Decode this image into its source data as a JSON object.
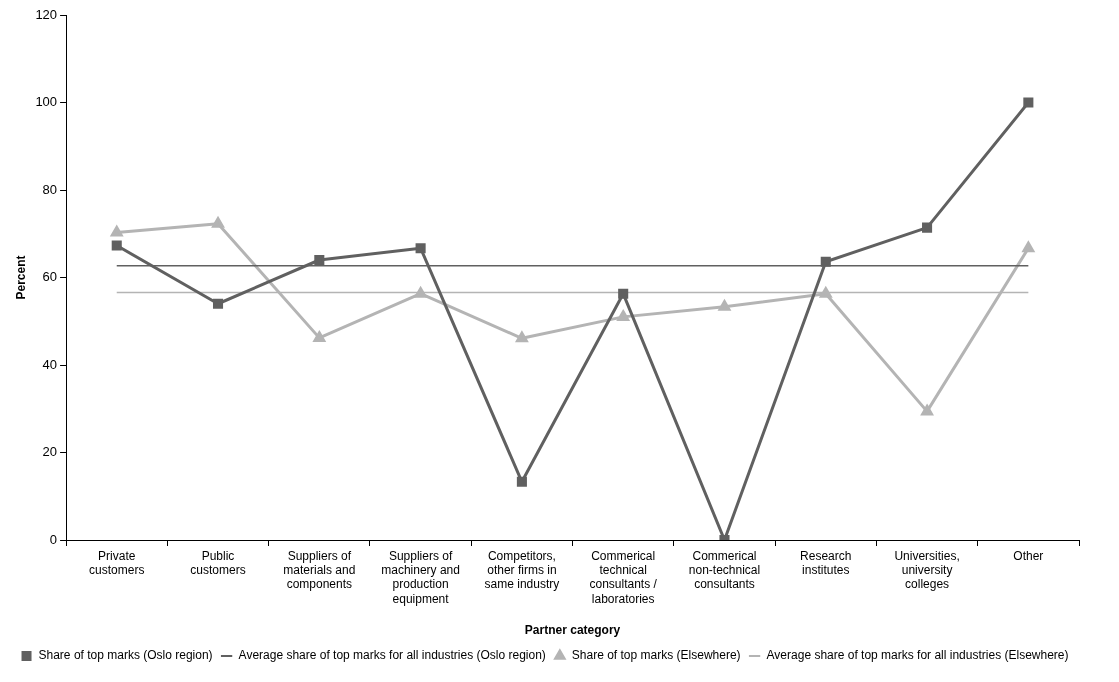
{
  "chart_data": {
    "type": "line",
    "xlabel": "Partner category",
    "ylabel": "Percent",
    "categories": [
      "Private customers",
      "Public customers",
      "Suppliers of materials and components",
      "Suppliers of machinery and production equipment",
      "Competitors, other firms in same industry",
      "Commerical technical consultants / laboratories",
      "Commerical non-technical consultants",
      "Research institutes",
      "Universities, university colleges",
      "Other"
    ],
    "series": [
      {
        "name": "Share of top marks (Oslo region)",
        "color": "#606060",
        "marker": "square",
        "values": [
          67.3,
          54,
          64,
          66.7,
          13.3,
          56.3,
          0,
          63.6,
          71.4,
          100
        ]
      },
      {
        "name": "Average share of top marks for all industries (Oslo region)",
        "color": "#606060",
        "marker": "none",
        "values": [
          62.7,
          62.7,
          62.7,
          62.7,
          62.7,
          62.7,
          62.7,
          62.7,
          62.7,
          62.7
        ]
      },
      {
        "name": "Share of top marks (Elsewhere)",
        "color": "#b4b4b4",
        "marker": "triangle",
        "values": [
          70.3,
          72.3,
          46.2,
          56.3,
          46.1,
          51,
          53.3,
          56.3,
          29.4,
          66.7
        ]
      },
      {
        "name": "Average share of top marks for all industries (Elsewhere)",
        "color": "#b4b4b4",
        "marker": "none",
        "values": [
          56.6,
          56.6,
          56.6,
          56.6,
          56.6,
          56.6,
          56.6,
          56.6,
          56.6,
          56.6
        ]
      }
    ],
    "ylim": [
      0,
      120
    ],
    "yticks": [
      0,
      20,
      40,
      60,
      80,
      100,
      120
    ],
    "grid": false,
    "legend": "bottom"
  }
}
